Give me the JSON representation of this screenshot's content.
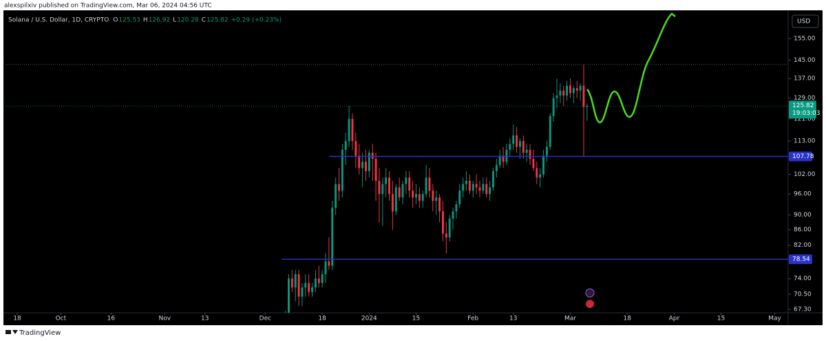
{
  "header": {
    "published": "alexspilxiv published on TradingView.com, Mar 06, 2024 04:56 UTC"
  },
  "footer": {
    "brand": "TradingView"
  },
  "chart_data": {
    "type": "candlestick",
    "title": "Solana / U.S. Dollar, 1D, CRYPTO",
    "legend_labels": {
      "open": "O",
      "high": "H",
      "low": "L",
      "close": "C"
    },
    "change": "+0.29 (+0.23%)",
    "currency": "USD",
    "countdown": "19:03:03",
    "log_scale": true,
    "grid": false,
    "up_color": "#089981",
    "down_color": "#f23645",
    "x": [
      80,
      81,
      82,
      83,
      84,
      85,
      86,
      87,
      88,
      89,
      90,
      91,
      92,
      93,
      94,
      95,
      96,
      97,
      98,
      99,
      100,
      101,
      102,
      103,
      104,
      105,
      106,
      107,
      108,
      109,
      110,
      111,
      112,
      113,
      114,
      115,
      116,
      117,
      118,
      119,
      120,
      121,
      122,
      123,
      124,
      125,
      126,
      127,
      128,
      129,
      130,
      131,
      132,
      133,
      134,
      135,
      136,
      137,
      138,
      139,
      140,
      141,
      142,
      143,
      144,
      145,
      146,
      147,
      148,
      149,
      150,
      151,
      152,
      153,
      154,
      155,
      156,
      157,
      158,
      159,
      160,
      161,
      162,
      163,
      164,
      165,
      166,
      167,
      168,
      169,
      170
    ],
    "open": [
      64,
      66,
      74,
      72,
      75,
      70,
      72,
      73,
      71,
      72,
      74,
      73,
      75,
      78,
      77,
      92,
      99,
      97,
      110,
      113,
      121,
      113,
      108,
      104,
      106,
      103,
      109,
      107,
      100,
      96,
      99,
      101,
      96,
      91,
      98,
      95,
      99,
      101,
      97,
      95,
      96,
      94,
      96,
      101,
      97,
      94,
      95,
      91,
      85,
      84,
      89,
      91,
      93,
      97,
      99,
      100,
      97,
      99,
      98,
      97,
      99,
      96,
      98,
      103,
      105,
      108,
      106,
      110,
      112,
      115,
      111,
      113,
      109,
      110,
      107,
      104,
      101,
      102,
      108,
      111,
      122,
      129,
      130,
      132,
      130,
      134,
      131,
      133,
      132,
      134,
      125.53
    ],
    "high": [
      67,
      75,
      76,
      76,
      76,
      73,
      75,
      75,
      73,
      76,
      77,
      76,
      80,
      84,
      94,
      101,
      104,
      112,
      116,
      126,
      123,
      116,
      112,
      109,
      110,
      110,
      112,
      109,
      104,
      101,
      104,
      103,
      100,
      99,
      101,
      100,
      103,
      103,
      100,
      99,
      98,
      97,
      105,
      104,
      99,
      97,
      96,
      94,
      88,
      90,
      92,
      94,
      99,
      101,
      103,
      102,
      100,
      102,
      100,
      101,
      101,
      100,
      104,
      107,
      110,
      111,
      112,
      114,
      119,
      118,
      114,
      115,
      112,
      112,
      110,
      106,
      104,
      110,
      113,
      123,
      131,
      137,
      135,
      134,
      136,
      137,
      134,
      136,
      135,
      143,
      126.92
    ],
    "low": [
      62,
      65,
      71,
      69,
      68,
      68,
      70,
      70,
      70,
      71,
      72,
      72,
      73,
      76,
      76,
      90,
      94,
      95,
      105,
      111,
      110,
      104,
      102,
      98,
      100,
      101,
      100,
      94,
      88,
      87,
      95,
      94,
      86,
      90,
      94,
      93,
      96,
      95,
      92,
      93,
      92,
      92,
      95,
      95,
      91,
      90,
      88,
      83,
      80,
      83,
      86,
      89,
      92,
      95,
      97,
      96,
      95,
      96,
      95,
      96,
      95,
      94,
      97,
      101,
      104,
      104,
      105,
      108,
      110,
      109,
      107,
      107,
      106,
      105,
      103,
      99,
      98,
      101,
      106,
      110,
      120,
      125,
      127,
      126,
      128,
      129,
      127,
      129,
      128,
      108,
      120.28
    ],
    "close": [
      66,
      74,
      72,
      75,
      70,
      72,
      73,
      71,
      72,
      74,
      73,
      75,
      78,
      77,
      92,
      99,
      97,
      110,
      113,
      121,
      113,
      108,
      104,
      106,
      103,
      109,
      107,
      100,
      96,
      99,
      101,
      96,
      91,
      98,
      95,
      99,
      101,
      97,
      95,
      96,
      94,
      96,
      101,
      97,
      94,
      95,
      91,
      85,
      84,
      89,
      91,
      93,
      97,
      99,
      100,
      97,
      99,
      98,
      97,
      99,
      96,
      98,
      103,
      105,
      108,
      106,
      110,
      112,
      115,
      111,
      113,
      109,
      110,
      107,
      104,
      101,
      102,
      108,
      111,
      122,
      129,
      130,
      132,
      130,
      134,
      131,
      133,
      132,
      134,
      125.53,
      125.82
    ],
    "hlines": [
      {
        "value": 107.78,
        "x0": 93,
        "color": "#2933c9"
      },
      {
        "value": 78.54,
        "x0": 79,
        "color": "#2933c9"
      }
    ],
    "xlim": [
      -3.5,
      230
    ],
    "ylim": [
      66.6,
      169
    ],
    "xticks": [
      {
        "value": 0,
        "label": "18"
      },
      {
        "value": 13,
        "label": "Oct"
      },
      {
        "value": 28,
        "label": "16"
      },
      {
        "value": 44,
        "label": "Nov"
      },
      {
        "value": 56,
        "label": "13"
      },
      {
        "value": 74,
        "label": "Dec"
      },
      {
        "value": 91,
        "label": "18"
      },
      {
        "value": 105,
        "label": "2024"
      },
      {
        "value": 119,
        "label": "15"
      },
      {
        "value": 136,
        "label": "Feb"
      },
      {
        "value": 148,
        "label": "13"
      },
      {
        "value": 165,
        "label": "Mar"
      },
      {
        "value": 182,
        "label": "18"
      },
      {
        "value": 196,
        "label": "Apr"
      },
      {
        "value": 210,
        "label": "15"
      },
      {
        "value": 226,
        "label": "May"
      }
    ],
    "yticks": [
      {
        "value": 67.3,
        "label": "67.30"
      },
      {
        "value": 70.5,
        "label": "70.50"
      },
      {
        "value": 74,
        "label": "74.00"
      },
      {
        "value": 82,
        "label": "82.00"
      },
      {
        "value": 86,
        "label": "86.00"
      },
      {
        "value": 90,
        "label": "90.00"
      },
      {
        "value": 96,
        "label": "96.00"
      },
      {
        "value": 102,
        "label": "102.00"
      },
      {
        "value": 113,
        "label": "113.00"
      },
      {
        "value": 121,
        "label": "121.00"
      },
      {
        "value": 129,
        "label": "129.00"
      },
      {
        "value": 137,
        "label": "137.00"
      },
      {
        "value": 145,
        "label": "145.00"
      },
      {
        "value": 155,
        "label": "155.00"
      }
    ]
  }
}
